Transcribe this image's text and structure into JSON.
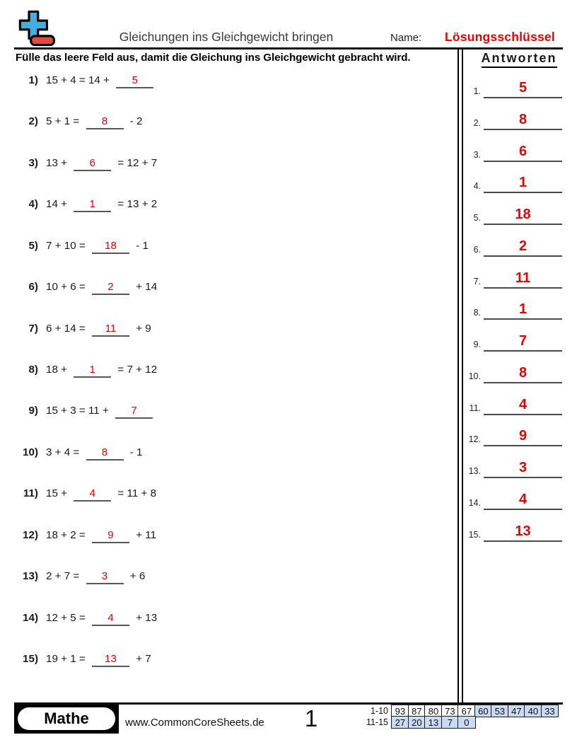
{
  "header": {
    "title": "Gleichungen ins Gleichgewicht bringen",
    "name_label": "Name:",
    "answer_key_label": "Lösungsschlüssel"
  },
  "instruction": "Fülle das leere Feld aus, damit die Gleichung ins Gleichgewicht gebracht wird.",
  "problems": [
    {
      "n": "1)",
      "pre": "15 + 4 = 14 +",
      "answer": "5",
      "post": ""
    },
    {
      "n": "2)",
      "pre": "5 + 1 =",
      "answer": "8",
      "post": "- 2"
    },
    {
      "n": "3)",
      "pre": "13 +",
      "answer": "6",
      "post": "= 12 + 7"
    },
    {
      "n": "4)",
      "pre": "14 +",
      "answer": "1",
      "post": "= 13 + 2"
    },
    {
      "n": "5)",
      "pre": "7 + 10 =",
      "answer": "18",
      "post": "- 1"
    },
    {
      "n": "6)",
      "pre": "10 + 6 =",
      "answer": "2",
      "post": "+ 14"
    },
    {
      "n": "7)",
      "pre": "6 + 14 =",
      "answer": "11",
      "post": "+ 9"
    },
    {
      "n": "8)",
      "pre": "18 +",
      "answer": "1",
      "post": "= 7 + 12"
    },
    {
      "n": "9)",
      "pre": "15 + 3 = 11 +",
      "answer": "7",
      "post": ""
    },
    {
      "n": "10)",
      "pre": "3 + 4 =",
      "answer": "8",
      "post": "- 1"
    },
    {
      "n": "11)",
      "pre": "15 +",
      "answer": "4",
      "post": "= 11 + 8"
    },
    {
      "n": "12)",
      "pre": "18 + 2 =",
      "answer": "9",
      "post": "+ 11"
    },
    {
      "n": "13)",
      "pre": "2 + 7 =",
      "answer": "3",
      "post": "+ 6"
    },
    {
      "n": "14)",
      "pre": "12 + 5 =",
      "answer": "4",
      "post": "+ 13"
    },
    {
      "n": "15)",
      "pre": "19 + 1 =",
      "answer": "13",
      "post": "+ 7"
    }
  ],
  "answers_panel": {
    "heading": "Antworten",
    "items": [
      {
        "n": "1.",
        "value": "5"
      },
      {
        "n": "2.",
        "value": "8"
      },
      {
        "n": "3.",
        "value": "6"
      },
      {
        "n": "4.",
        "value": "1"
      },
      {
        "n": "5.",
        "value": "18"
      },
      {
        "n": "6.",
        "value": "2"
      },
      {
        "n": "7.",
        "value": "11"
      },
      {
        "n": "8.",
        "value": "1"
      },
      {
        "n": "9.",
        "value": "7"
      },
      {
        "n": "10.",
        "value": "8"
      },
      {
        "n": "11.",
        "value": "4"
      },
      {
        "n": "12.",
        "value": "9"
      },
      {
        "n": "13.",
        "value": "3"
      },
      {
        "n": "14.",
        "value": "4"
      },
      {
        "n": "15.",
        "value": "13"
      }
    ]
  },
  "footer": {
    "subject": "Mathe",
    "website": "www.CommonCoreSheets.de",
    "page_number": "1",
    "score_table": {
      "rows": [
        {
          "label": "1-10",
          "cells": [
            {
              "v": "93",
              "hl": false
            },
            {
              "v": "87",
              "hl": false
            },
            {
              "v": "80",
              "hl": false
            },
            {
              "v": "73",
              "hl": false
            },
            {
              "v": "67",
              "hl": false
            },
            {
              "v": "60",
              "hl": true
            },
            {
              "v": "53",
              "hl": true
            },
            {
              "v": "47",
              "hl": true
            },
            {
              "v": "40",
              "hl": true
            },
            {
              "v": "33",
              "hl": true
            }
          ]
        },
        {
          "label": "11-15",
          "cells": [
            {
              "v": "27",
              "hl": true
            },
            {
              "v": "20",
              "hl": true
            },
            {
              "v": "13",
              "hl": true
            },
            {
              "v": "7",
              "hl": true
            },
            {
              "v": "0",
              "hl": true
            }
          ]
        }
      ]
    }
  },
  "colors": {
    "accent_red": "#ee0000",
    "table_highlight": "#c9daf2",
    "logo_blue": "#47ace0",
    "logo_red": "#e8493f",
    "blank_line_gray": "#57585a"
  }
}
